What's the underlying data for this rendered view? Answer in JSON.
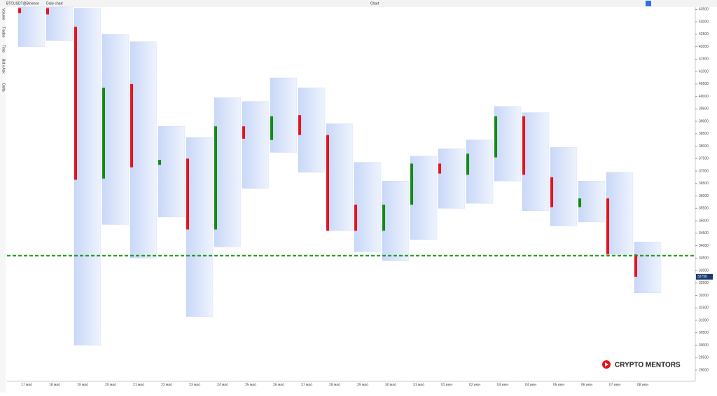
{
  "toolbar": {
    "symbol": "BTCUSDT@Binance",
    "timeframe": "Daily chart",
    "title": "Chart"
  },
  "side_panel": [
    "Volume",
    "Trades",
    "Time",
    "Bid x Ask",
    "Delta"
  ],
  "watermark": "CRYPTO MENTORS",
  "chart_data": {
    "type": "footprint",
    "categories": [
      "17 мая",
      "18 мая",
      "19 мая",
      "20 мая",
      "21 мая",
      "22 мая",
      "23 мая",
      "24 мая",
      "25 мая",
      "26 мая",
      "27 мая",
      "28 мая",
      "29 мая",
      "30 мая",
      "31 мая",
      "01 июн",
      "02 июн",
      "03 июн",
      "04 июн",
      "05 июн",
      "06 июн",
      "07 июн",
      "08 июн"
    ],
    "open": [
      43550,
      43550,
      42800,
      36700,
      40500,
      37250,
      37500,
      34650,
      38800,
      38250,
      39250,
      38450,
      35650,
      34600,
      35650,
      37300,
      36850,
      37550,
      39200,
      36750,
      35550,
      35900,
      33650
    ],
    "high": [
      43600,
      43600,
      43550,
      42500,
      42200,
      38800,
      38350,
      39950,
      39800,
      40750,
      40350,
      38900,
      37350,
      36600,
      37600,
      37900,
      38250,
      39600,
      39350,
      37950,
      36600,
      36950,
      34150
    ],
    "low": [
      42000,
      42250,
      30000,
      34850,
      33500,
      35150,
      31150,
      33950,
      36300,
      37750,
      36950,
      34600,
      33750,
      33400,
      34250,
      35500,
      35700,
      36600,
      35400,
      34800,
      34950,
      33650,
      32100
    ],
    "close": [
      43350,
      43300,
      36650,
      40350,
      37150,
      37450,
      34650,
      38800,
      38300,
      39200,
      38450,
      34600,
      34600,
      35650,
      37300,
      36900,
      37700,
      39200,
      36850,
      35550,
      35900,
      33650,
      32750
    ],
    "up_color": "#138a13",
    "down_color": "#e5131b",
    "column_color": "#2f6fe0",
    "ylim": [
      28660,
      43540
    ],
    "yticks": [
      29000,
      29500,
      30000,
      30500,
      31000,
      31500,
      32000,
      32500,
      33000,
      33500,
      34000,
      34500,
      35000,
      35500,
      36000,
      36500,
      37000,
      37500,
      38000,
      38500,
      39000,
      39500,
      40000,
      40500,
      41000,
      41500,
      42000,
      42500,
      43000,
      43500
    ],
    "level": 33600,
    "level_color": "#1a9a1a",
    "last_price": 32750
  }
}
